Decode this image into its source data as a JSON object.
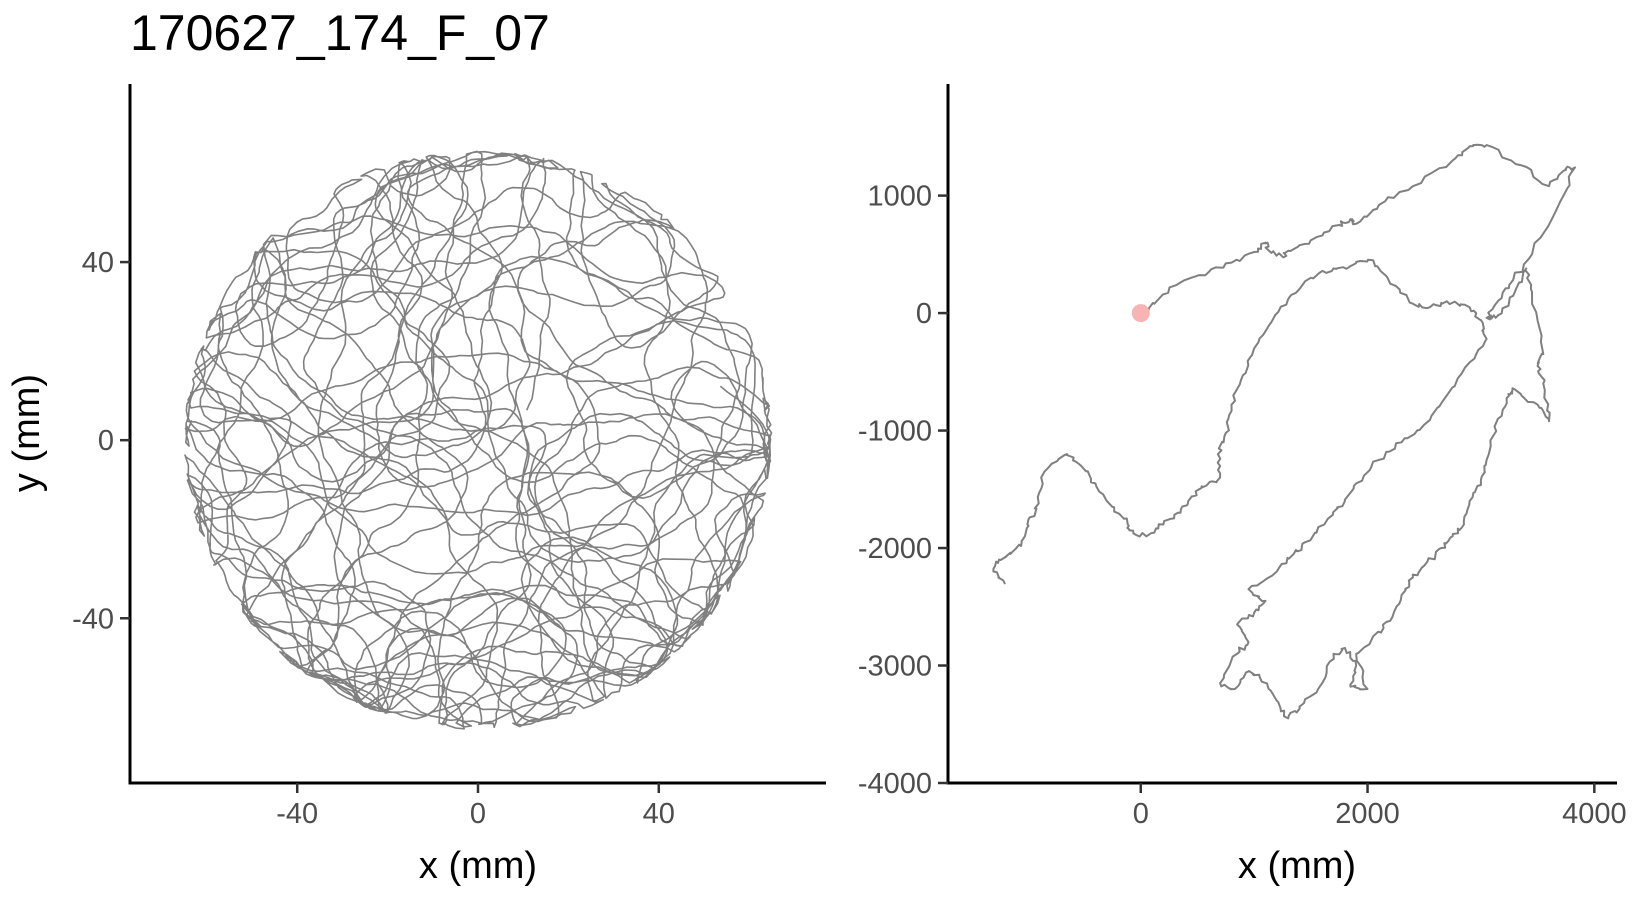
{
  "figure": {
    "title": "170627_174_F_07",
    "trace_color": "#808080",
    "start_marker_color": "#f8b4b4"
  },
  "chart_data": [
    {
      "type": "line",
      "panel": "left",
      "description_of_content": "dense looping walking trajectory confined to a circular arena",
      "xlabel": "x (mm)",
      "ylabel": "y (mm)",
      "xlim": [
        -77,
        77
      ],
      "ylim": [
        -77,
        80
      ],
      "xticks": [
        -40,
        0,
        40
      ],
      "yticks": [
        -40,
        0,
        40
      ],
      "arena_radius_mm": 65,
      "grid": false,
      "legend": "none"
    },
    {
      "type": "line",
      "panel": "right",
      "xlabel": "x (mm)",
      "ylabel": "",
      "xlim": [
        -1700,
        4200
      ],
      "ylim": [
        -4000,
        1950
      ],
      "xticks": [
        0,
        2000,
        4000
      ],
      "yticks": [
        -4000,
        -3000,
        -2000,
        -1000,
        0,
        1000
      ],
      "start_point": {
        "x": 0,
        "y": 0
      },
      "grid": false,
      "legend": "none",
      "path": [
        [
          0,
          0
        ],
        [
          120,
          80
        ],
        [
          350,
          260
        ],
        [
          600,
          350
        ],
        [
          800,
          430
        ],
        [
          1000,
          520
        ],
        [
          1100,
          600
        ],
        [
          1120,
          540
        ],
        [
          1250,
          480
        ],
        [
          1300,
          530
        ],
        [
          1500,
          620
        ],
        [
          1750,
          750
        ],
        [
          1850,
          800
        ],
        [
          1900,
          760
        ],
        [
          2100,
          920
        ],
        [
          2400,
          1080
        ],
        [
          2750,
          1300
        ],
        [
          2900,
          1420
        ],
        [
          3050,
          1430
        ],
        [
          3350,
          1260
        ],
        [
          3600,
          1080
        ],
        [
          3750,
          1220
        ],
        [
          3830,
          1240
        ],
        [
          3700,
          950
        ],
        [
          3450,
          500
        ],
        [
          3250,
          240
        ],
        [
          3150,
          100
        ],
        [
          3050,
          -40
        ],
        [
          3150,
          -20
        ],
        [
          3300,
          180
        ],
        [
          3400,
          380
        ],
        [
          3450,
          180
        ],
        [
          3550,
          -350
        ],
        [
          3500,
          -450
        ],
        [
          3550,
          -600
        ],
        [
          3600,
          -920
        ],
        [
          3500,
          -780
        ],
        [
          3300,
          -650
        ],
        [
          3250,
          -700
        ],
        [
          3150,
          -900
        ],
        [
          3050,
          -1250
        ],
        [
          3000,
          -1420
        ],
        [
          2900,
          -1600
        ],
        [
          2850,
          -1800
        ],
        [
          2750,
          -1900
        ],
        [
          2650,
          -2000
        ],
        [
          2500,
          -2150
        ],
        [
          2400,
          -2250
        ],
        [
          2300,
          -2400
        ],
        [
          2200,
          -2620
        ],
        [
          2050,
          -2750
        ],
        [
          1900,
          -2900
        ],
        [
          2000,
          -3200
        ],
        [
          1850,
          -3180
        ],
        [
          1900,
          -3000
        ],
        [
          1800,
          -2850
        ],
        [
          1700,
          -2900
        ],
        [
          1600,
          -3150
        ],
        [
          1400,
          -3350
        ],
        [
          1300,
          -3450
        ],
        [
          1200,
          -3300
        ],
        [
          1050,
          -3100
        ],
        [
          950,
          -3050
        ],
        [
          830,
          -3200
        ],
        [
          700,
          -3150
        ],
        [
          850,
          -2900
        ],
        [
          950,
          -2800
        ],
        [
          850,
          -2650
        ],
        [
          1000,
          -2550
        ],
        [
          1100,
          -2450
        ],
        [
          950,
          -2350
        ],
        [
          1200,
          -2200
        ],
        [
          1350,
          -2050
        ],
        [
          1450,
          -1950
        ],
        [
          1650,
          -1750
        ],
        [
          1800,
          -1600
        ],
        [
          1900,
          -1450
        ],
        [
          2100,
          -1250
        ],
        [
          2300,
          -1100
        ],
        [
          2500,
          -950
        ],
        [
          2700,
          -700
        ],
        [
          2900,
          -420
        ],
        [
          3050,
          -220
        ],
        [
          3000,
          -60
        ],
        [
          2900,
          50
        ],
        [
          2700,
          100
        ],
        [
          2550,
          50
        ],
        [
          2400,
          80
        ],
        [
          2200,
          250
        ],
        [
          2050,
          450
        ],
        [
          1850,
          400
        ],
        [
          1700,
          380
        ],
        [
          1500,
          300
        ],
        [
          1300,
          120
        ],
        [
          1150,
          -80
        ],
        [
          1000,
          -300
        ],
        [
          900,
          -530
        ],
        [
          800,
          -780
        ],
        [
          750,
          -1020
        ],
        [
          680,
          -1200
        ],
        [
          700,
          -1400
        ],
        [
          550,
          -1480
        ],
        [
          450,
          -1560
        ],
        [
          350,
          -1700
        ],
        [
          200,
          -1800
        ],
        [
          50,
          -1900
        ],
        [
          -100,
          -1850
        ],
        [
          -150,
          -1750
        ],
        [
          -250,
          -1650
        ],
        [
          -400,
          -1450
        ],
        [
          -550,
          -1280
        ],
        [
          -650,
          -1200
        ],
        [
          -850,
          -1350
        ],
        [
          -900,
          -1620
        ],
        [
          -1000,
          -1800
        ],
        [
          -1050,
          -1950
        ],
        [
          -1150,
          -2050
        ],
        [
          -1250,
          -2100
        ],
        [
          -1300,
          -2200
        ],
        [
          -1200,
          -2300
        ]
      ]
    }
  ]
}
